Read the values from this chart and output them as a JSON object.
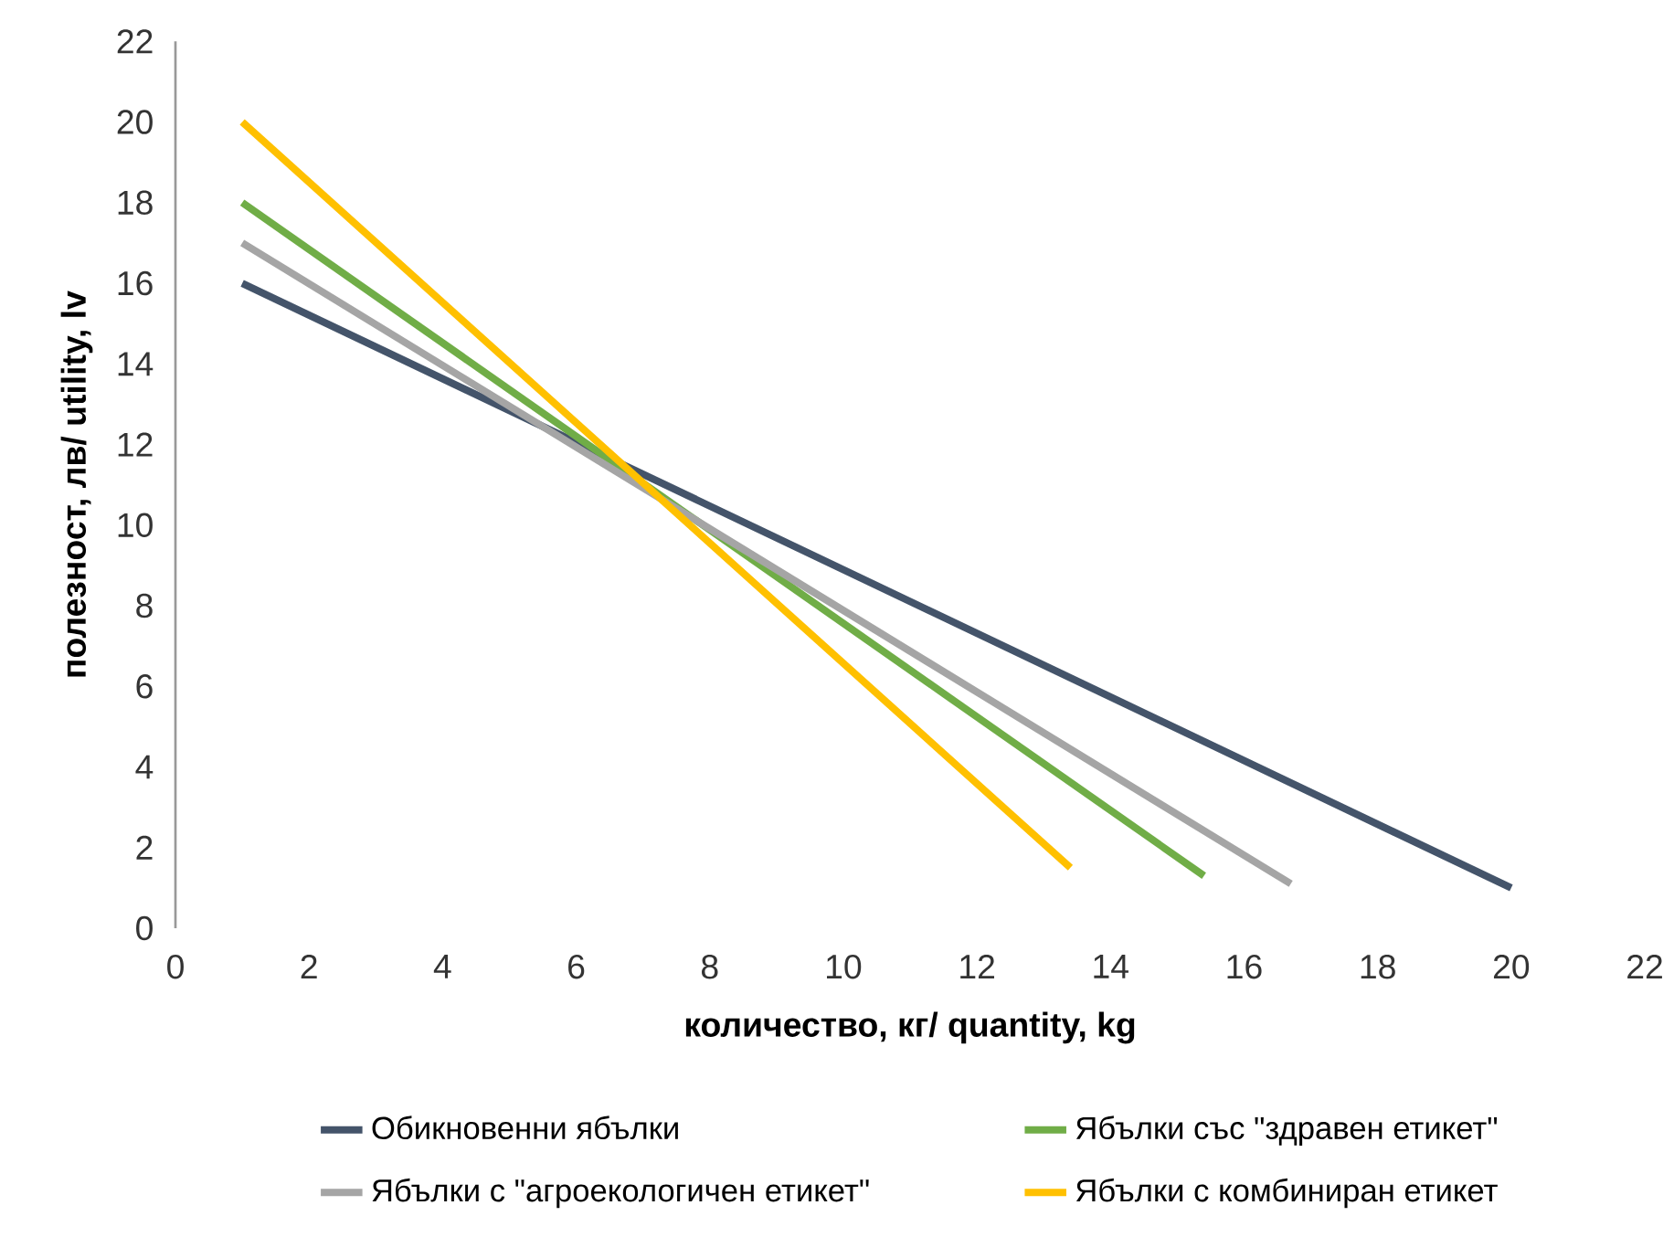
{
  "chart_data": {
    "type": "line",
    "xlabel": "количество, кг/ quantity, kg",
    "ylabel": "полезност, лв/ utility, lv",
    "xlim": [
      0,
      22
    ],
    "ylim": [
      0,
      22
    ],
    "xticks": [
      0,
      2,
      4,
      6,
      8,
      10,
      12,
      14,
      16,
      18,
      20,
      22
    ],
    "yticks": [
      0,
      2,
      4,
      6,
      8,
      10,
      12,
      14,
      16,
      18,
      20,
      22
    ],
    "grid": false,
    "legend": "bottom",
    "marker": "none",
    "line_style": "solid",
    "series": [
      {
        "name": "Обикновенни ябълки",
        "color": "#44546a",
        "x": [
          1,
          20
        ],
        "values": [
          16,
          1
        ]
      },
      {
        "name": "Ябълки със \"здравен етикет\"",
        "color": "#70ad47",
        "x": [
          1,
          15.4
        ],
        "values": [
          18,
          1.3
        ]
      },
      {
        "name": "Ябълки с \"агроекологичен етикет\"",
        "color": "#a5a5a5",
        "x": [
          1,
          16.7
        ],
        "values": [
          17,
          1.1
        ]
      },
      {
        "name": "Ябълки с комбиниран етикет",
        "color": "#ffc000",
        "x": [
          1,
          13.4
        ],
        "values": [
          20,
          1.5
        ]
      }
    ]
  }
}
